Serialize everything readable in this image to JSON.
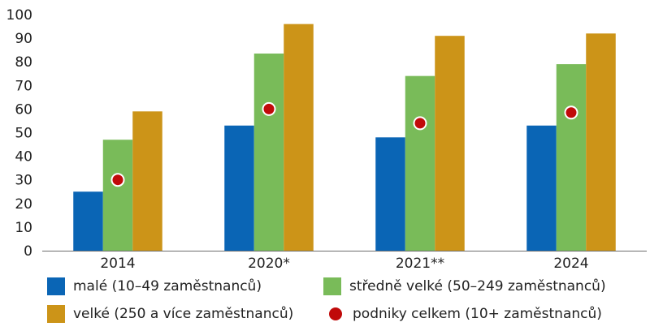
{
  "chart_data": {
    "type": "bar",
    "categories": [
      "2014",
      "2020*",
      "2021**",
      "2024"
    ],
    "series": [
      {
        "name": "malé (10–49 zaměstnanců)",
        "color": "#0a65b5",
        "values": [
          25,
          53,
          48,
          53
        ]
      },
      {
        "name": "středně velké (50–249 zaměstnanců)",
        "color": "#79bb59",
        "values": [
          47,
          83.5,
          74,
          79
        ]
      },
      {
        "name": "velké (250 a více zaměstnanců)",
        "color": "#cc9418",
        "values": [
          59,
          96,
          91,
          92
        ]
      }
    ],
    "points": {
      "name": "podniky celkem (10+ zaměstnanců)",
      "color": "#c00a0a",
      "values": [
        30,
        60,
        54,
        58.5
      ]
    },
    "yticks": [
      "0",
      "10",
      "20",
      "30",
      "40",
      "50",
      "60",
      "70",
      "80",
      "90",
      "100"
    ],
    "ylim": [
      0,
      100
    ],
    "grid": false,
    "legend_position": "bottom"
  }
}
